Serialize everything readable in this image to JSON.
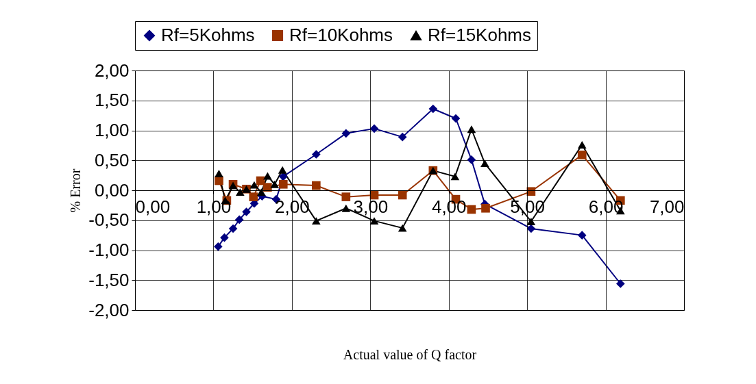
{
  "chart_data": {
    "type": "line",
    "xlabel": "Actual value of Q factor",
    "ylabel": "% Error",
    "xlim": [
      0,
      7
    ],
    "ylim": [
      -2,
      2
    ],
    "xticks": [
      {
        "value": 0,
        "label": "0,00"
      },
      {
        "value": 1,
        "label": "1,00"
      },
      {
        "value": 2,
        "label": "2,00"
      },
      {
        "value": 3,
        "label": "3,00"
      },
      {
        "value": 4,
        "label": "4,00"
      },
      {
        "value": 5,
        "label": "5,00"
      },
      {
        "value": 6,
        "label": "6,00"
      },
      {
        "value": 7,
        "label": "7,00"
      }
    ],
    "yticks": [
      {
        "value": -2,
        "label": "-2,00"
      },
      {
        "value": -1.5,
        "label": "-1,50"
      },
      {
        "value": -1,
        "label": "-1,00"
      },
      {
        "value": -0.5,
        "label": "-0,50"
      },
      {
        "value": 0,
        "label": "0,00"
      },
      {
        "value": 0.5,
        "label": "0,50"
      },
      {
        "value": 1,
        "label": "1,00"
      },
      {
        "value": 1.5,
        "label": "1,50"
      },
      {
        "value": 2,
        "label": "2,00"
      }
    ],
    "grid": true,
    "legend": "top",
    "line_style": "solid",
    "series": [
      {
        "name": "Rf=5Kohms",
        "color": "#000080",
        "marker": "diamond",
        "x": [
          1.06,
          1.14,
          1.25,
          1.33,
          1.42,
          1.52,
          1.62,
          1.8,
          1.89,
          2.31,
          2.69,
          3.05,
          3.41,
          3.8,
          4.09,
          4.29,
          4.46,
          5.05,
          5.7,
          6.19
        ],
        "values": [
          -0.94,
          -0.79,
          -0.64,
          -0.49,
          -0.36,
          -0.22,
          -0.1,
          -0.15,
          0.23,
          0.6,
          0.95,
          1.03,
          0.89,
          1.36,
          1.2,
          0.51,
          -0.23,
          -0.64,
          -0.75,
          -1.56
        ]
      },
      {
        "name": "Rf=10Kohms",
        "color": "#993300",
        "marker": "square",
        "x": [
          1.07,
          1.17,
          1.25,
          1.42,
          1.51,
          1.6,
          1.69,
          1.89,
          2.31,
          2.69,
          3.05,
          3.41,
          3.8,
          4.09,
          4.29,
          4.47,
          5.05,
          5.7,
          6.19
        ],
        "values": [
          0.16,
          -0.17,
          0.1,
          0.02,
          -0.11,
          0.16,
          0.05,
          0.1,
          0.08,
          -0.11,
          -0.08,
          -0.08,
          0.33,
          -0.15,
          -0.32,
          -0.3,
          -0.02,
          0.59,
          -0.17
        ]
      },
      {
        "name": "Rf=15Kohms",
        "color": "#000000",
        "marker": "triangle",
        "x": [
          1.07,
          1.15,
          1.25,
          1.34,
          1.42,
          1.52,
          1.61,
          1.69,
          1.78,
          1.88,
          2.31,
          2.69,
          3.05,
          3.41,
          3.8,
          4.08,
          4.29,
          4.46,
          5.05,
          5.7,
          6.19
        ],
        "values": [
          0.28,
          -0.17,
          0.08,
          -0.03,
          0.02,
          0.09,
          -0.03,
          0.24,
          0.1,
          0.34,
          -0.51,
          -0.3,
          -0.51,
          -0.63,
          0.33,
          0.23,
          1.02,
          0.45,
          -0.52,
          0.76,
          -0.34
        ]
      }
    ]
  }
}
